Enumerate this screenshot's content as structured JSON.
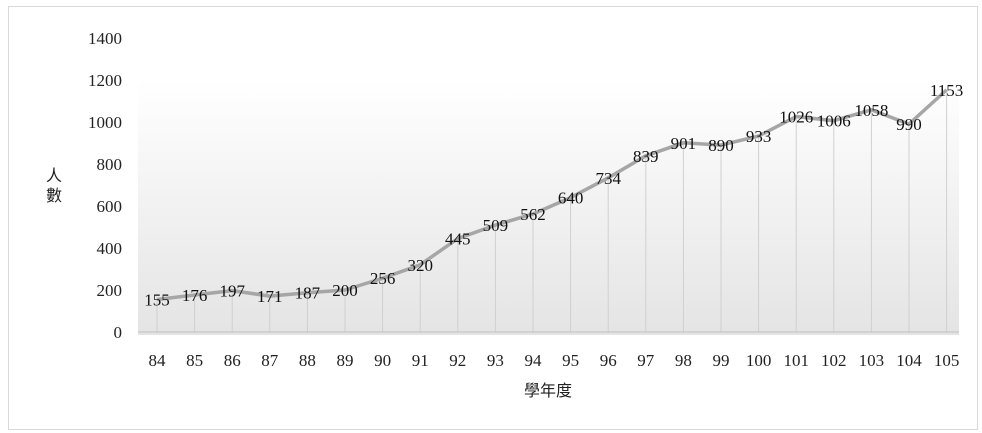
{
  "chart_data": {
    "type": "line",
    "title": "",
    "xlabel": "學年度",
    "ylabel": "人數",
    "ylim": [
      0,
      1400
    ],
    "yticks": [
      "0",
      "200",
      "400",
      "600",
      "800",
      "1000",
      "1200",
      "1400"
    ],
    "categories": [
      "84",
      "85",
      "86",
      "87",
      "88",
      "89",
      "90",
      "91",
      "92",
      "93",
      "94",
      "95",
      "96",
      "97",
      "98",
      "99",
      "100",
      "101",
      "102",
      "103",
      "104",
      "105"
    ],
    "series": [
      {
        "values": [
          155,
          176,
          197,
          171,
          187,
          200,
          256,
          320,
          445,
          509,
          562,
          640,
          734,
          839,
          901,
          890,
          933,
          1026,
          1006,
          1058,
          990,
          1153
        ]
      }
    ],
    "data_labels": true,
    "drop_lines": true,
    "gridlines": false,
    "colors": {
      "line": "#a6a6a6",
      "plot_fill_top": "#ffffff",
      "plot_fill_bottom": "#e6e6e6",
      "drop_line": "#d0d0d0"
    }
  }
}
